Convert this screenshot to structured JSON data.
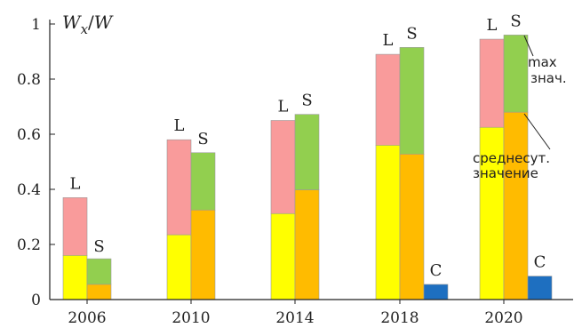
{
  "chart_data": {
    "type": "bar",
    "ylabel": "W_x/W",
    "ylim": [
      0,
      1
    ],
    "yticks": [
      0,
      0.2,
      0.4,
      0.6,
      0.8,
      1
    ],
    "ytick_labels": [
      "0",
      "0.2",
      "0.4",
      "0.6",
      "0.8",
      "1"
    ],
    "categories": [
      "2006",
      "2010",
      "2014",
      "2018",
      "2020"
    ],
    "stacked": true,
    "colors": {
      "L_avg": "#ffff00",
      "L_max": "#f99b9b",
      "S_avg": "#ffbb00",
      "S_max": "#92cf4f",
      "C": "#1e6fc0"
    },
    "bars": [
      {
        "category": "2006",
        "label": "L",
        "avg": 0.16,
        "max": 0.37
      },
      {
        "category": "2006",
        "label": "S",
        "avg": 0.055,
        "max": 0.148
      },
      {
        "category": "2010",
        "label": "L",
        "avg": 0.235,
        "max": 0.58
      },
      {
        "category": "2010",
        "label": "S",
        "avg": 0.325,
        "max": 0.533
      },
      {
        "category": "2014",
        "label": "L",
        "avg": 0.312,
        "max": 0.65
      },
      {
        "category": "2014",
        "label": "S",
        "avg": 0.398,
        "max": 0.672
      },
      {
        "category": "2018",
        "label": "L",
        "avg": 0.56,
        "max": 0.89
      },
      {
        "category": "2018",
        "label": "S",
        "avg": 0.528,
        "max": 0.915
      },
      {
        "category": "2018",
        "label": "C",
        "avg": 0.0,
        "max": 0.055
      },
      {
        "category": "2020",
        "label": "L",
        "avg": 0.625,
        "max": 0.945
      },
      {
        "category": "2020",
        "label": "S",
        "avg": 0.68,
        "max": 0.96
      },
      {
        "category": "2020",
        "label": "C",
        "avg": 0.0,
        "max": 0.085
      }
    ],
    "annotations": {
      "max_line1": "max",
      "max_line2": "знач.",
      "avg_line1": "среднесут.",
      "avg_line2": "значение"
    }
  }
}
